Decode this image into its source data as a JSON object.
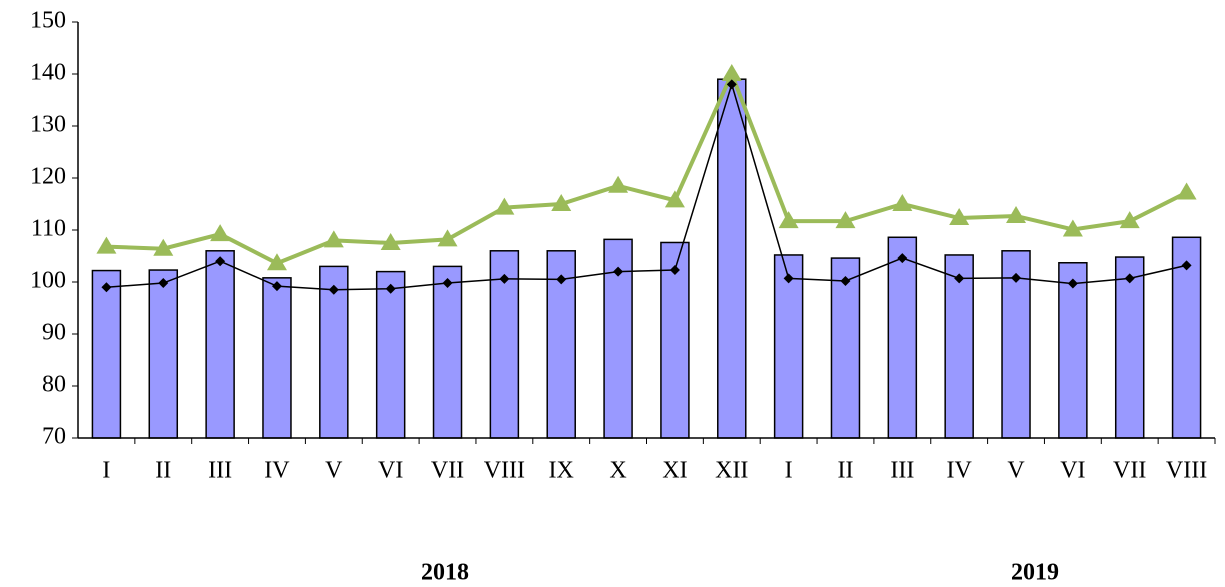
{
  "chart_data": {
    "type": "bar",
    "categories": [
      "I",
      "II",
      "III",
      "IV",
      "V",
      "VI",
      "VII",
      "VIII",
      "IX",
      "X",
      "XI",
      "XII",
      "I",
      "II",
      "III",
      "IV",
      "V",
      "VI",
      "VII",
      "VIII"
    ],
    "series": [
      {
        "type": "bar",
        "color": "#9999ff",
        "values": [
          102.2,
          102.3,
          106,
          100.8,
          103,
          102,
          103,
          106,
          106,
          108.2,
          107.6,
          139,
          105.2,
          104.6,
          108.6,
          105.2,
          106,
          103.7,
          104.8,
          108.6
        ]
      },
      {
        "type": "line",
        "color": "#9bbb59",
        "marker": "triangle",
        "values": [
          106.8,
          106.4,
          109.2,
          103.6,
          108,
          107.5,
          108.2,
          114.3,
          115,
          118.5,
          115.7,
          140,
          111.7,
          111.7,
          115,
          112.3,
          112.7,
          110.1,
          111.7,
          117.2
        ]
      },
      {
        "type": "line",
        "color": "#000000",
        "marker": "diamond",
        "values": [
          99,
          99.8,
          104,
          99.2,
          98.5,
          98.7,
          99.8,
          100.6,
          100.5,
          102,
          102.3,
          138,
          100.7,
          100.2,
          104.6,
          100.7,
          100.8,
          99.7,
          100.7,
          103.2
        ]
      }
    ],
    "annotations": [
      "2018",
      "2019"
    ],
    "ylim": [
      70,
      150
    ],
    "yticks": [
      70,
      80,
      90,
      100,
      110,
      120,
      130,
      140,
      150
    ],
    "grid": false
  }
}
